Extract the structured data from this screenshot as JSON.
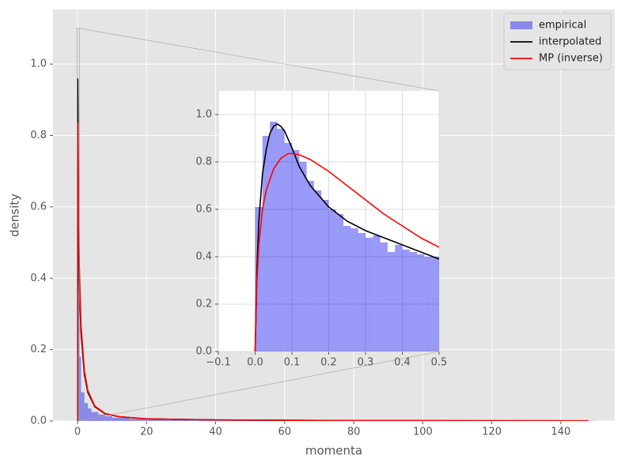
{
  "chart_data": [
    {
      "type": "hist_lines",
      "xlabel": "momenta",
      "ylabel": "density",
      "xlim": [
        -7.1,
        155.6
      ],
      "ylim": [
        0,
        1.153
      ],
      "xticks": [
        0,
        20,
        40,
        60,
        80,
        100,
        120,
        140
      ],
      "yticks": [
        {
          "value": 0,
          "label": "0.0"
        },
        {
          "value": 0.2,
          "label": "0.2"
        },
        {
          "value": 0.4,
          "label": "0.4"
        },
        {
          "value": 0.6,
          "label": "0.6"
        },
        {
          "value": 0.8,
          "label": "0.8"
        },
        {
          "value": 1,
          "label": "1.0"
        }
      ],
      "grid": true,
      "legend": "upper right",
      "histogram": {
        "name": "empirical",
        "color": "#0000ee",
        "alpha": 0.4,
        "bins": [
          0,
          0.5,
          1,
          2,
          3,
          4,
          6,
          8,
          10,
          15,
          20,
          30,
          40,
          60,
          80,
          100,
          120,
          150
        ],
        "values": [
          0.6,
          0.18,
          0.08,
          0.05,
          0.035,
          0.025,
          0.018,
          0.013,
          0.009,
          0.006,
          0.004,
          0.003,
          0.002,
          0.0015,
          0.001,
          0.001,
          0.0008
        ]
      },
      "series": [
        {
          "name": "interpolated",
          "color": "#000000",
          "x": [
            0,
            0.02,
            0.05,
            0.1,
            0.2,
            0.5,
            1,
            2,
            3,
            5,
            8,
            12,
            20,
            40,
            80,
            148
          ],
          "values": [
            0,
            0.75,
            0.96,
            0.88,
            0.64,
            0.39,
            0.25,
            0.13,
            0.08,
            0.04,
            0.02,
            0.012,
            0.006,
            0.003,
            0.001,
            0.0005
          ]
        },
        {
          "name": "MP (inverse)",
          "color": "#ff0000",
          "x": [
            0,
            0.01,
            0.03,
            0.1,
            0.2,
            0.5,
            1,
            2,
            3,
            5,
            8,
            12,
            20,
            40,
            80,
            148
          ],
          "values": [
            0,
            0.45,
            0.68,
            0.835,
            0.76,
            0.44,
            0.27,
            0.14,
            0.085,
            0.042,
            0.021,
            0.012,
            0.006,
            0.003,
            0.001,
            0.0005
          ]
        }
      ]
    },
    {
      "type": "hist_lines",
      "xlim": [
        -0.1,
        0.5
      ],
      "ylim": [
        0,
        1.1
      ],
      "xticks": [
        {
          "value": -0.1,
          "label": "−0.1"
        },
        {
          "value": 0,
          "label": "0.0"
        },
        0.1,
        0.2,
        0.3,
        0.4,
        0.5
      ],
      "yticks": [
        {
          "value": 0,
          "label": "0.0"
        },
        {
          "value": 0.2,
          "label": "0.2"
        },
        {
          "value": 0.4,
          "label": "0.4"
        },
        {
          "value": 0.6,
          "label": "0.6"
        },
        {
          "value": 0.8,
          "label": "0.8"
        },
        {
          "value": 1,
          "label": "1.0"
        }
      ],
      "grid": true,
      "histogram": {
        "color": "#0000ee",
        "alpha": 0.4,
        "bins": [
          0,
          0.02,
          0.04,
          0.06,
          0.08,
          0.1,
          0.12,
          0.14,
          0.16,
          0.18,
          0.2,
          0.22,
          0.24,
          0.26,
          0.28,
          0.3,
          0.32,
          0.34,
          0.36,
          0.38,
          0.4,
          0.42,
          0.44,
          0.46,
          0.48,
          0.5
        ],
        "values": [
          0.61,
          0.91,
          0.97,
          0.94,
          0.88,
          0.85,
          0.8,
          0.72,
          0.68,
          0.64,
          0.6,
          0.58,
          0.53,
          0.52,
          0.5,
          0.48,
          0.49,
          0.46,
          0.42,
          0.45,
          0.43,
          0.42,
          0.41,
          0.4,
          0.4
        ]
      },
      "series": [
        {
          "color": "#000000",
          "x": [
            0,
            0.005,
            0.01,
            0.02,
            0.03,
            0.04,
            0.05,
            0.06,
            0.07,
            0.08,
            0.1,
            0.12,
            0.15,
            0.2,
            0.25,
            0.3,
            0.35,
            0.4,
            0.45,
            0.5
          ],
          "values": [
            0,
            0.35,
            0.55,
            0.75,
            0.85,
            0.92,
            0.95,
            0.96,
            0.95,
            0.93,
            0.86,
            0.78,
            0.7,
            0.61,
            0.55,
            0.51,
            0.48,
            0.45,
            0.42,
            0.39
          ]
        },
        {
          "color": "#ff0000",
          "x": [
            0,
            0.005,
            0.01,
            0.02,
            0.03,
            0.05,
            0.07,
            0.09,
            0.1,
            0.12,
            0.15,
            0.2,
            0.25,
            0.3,
            0.35,
            0.4,
            0.45,
            0.5
          ],
          "values": [
            0,
            0.3,
            0.45,
            0.6,
            0.68,
            0.77,
            0.815,
            0.835,
            0.835,
            0.83,
            0.81,
            0.76,
            0.7,
            0.64,
            0.58,
            0.53,
            0.48,
            0.44
          ]
        }
      ]
    }
  ]
}
